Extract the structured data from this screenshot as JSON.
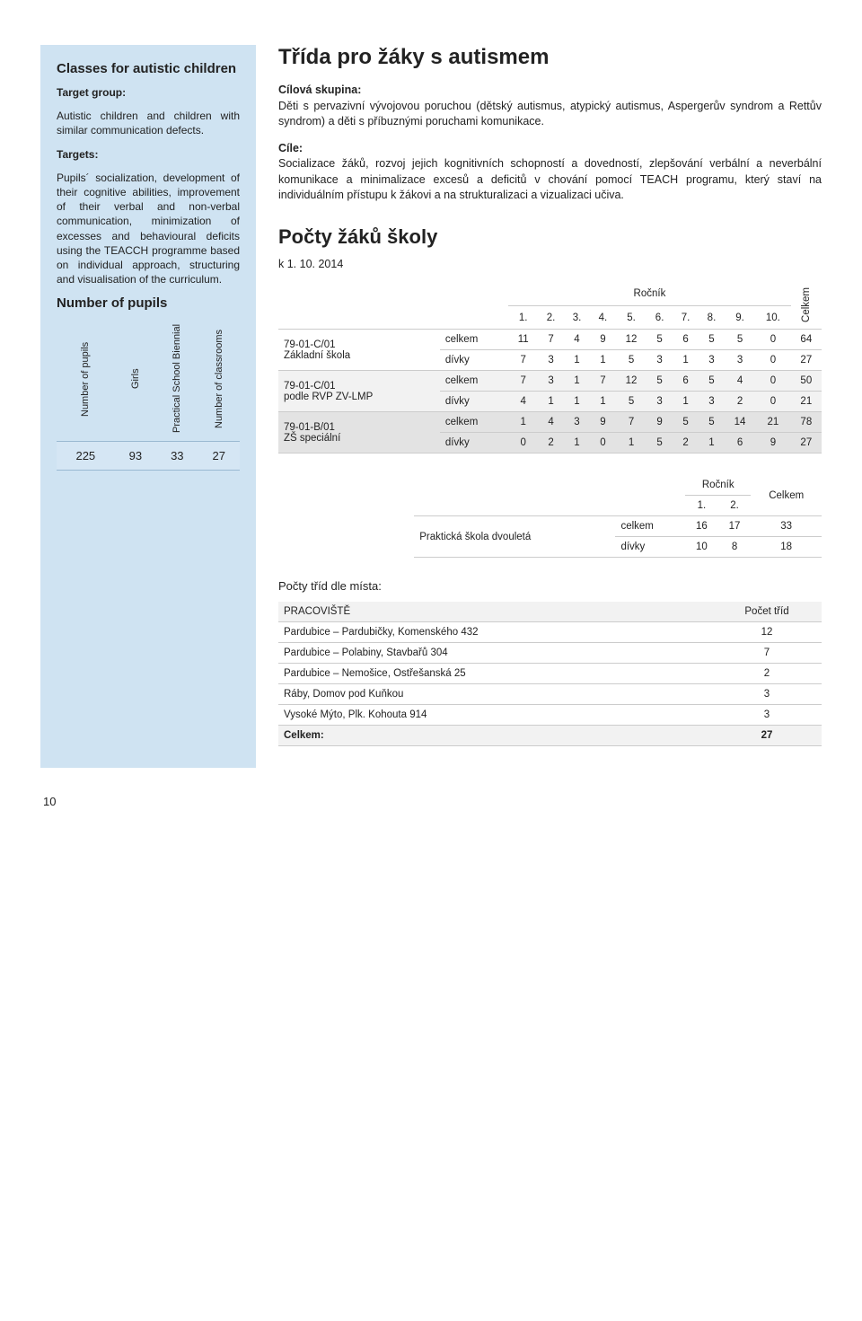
{
  "sidebar": {
    "heading": "Classes for autistic children",
    "target_group_label": "Target group:",
    "target_group_text": "Autistic children and children with similar communication defects.",
    "targets_label": "Targets:",
    "targets_text": "Pupils´ socialization, development of their cognitive abilities, improvement of their verbal and non-verbal communication, minimization of excesses and behavioural deficits using the TEACCH programme based on individual approach, structuring and visualisation of the curriculum.",
    "number_heading": "Number of pupils",
    "table": {
      "headers": [
        "Number of pupils",
        "Girls",
        "Practical School Biennial",
        "Number of classrooms"
      ],
      "values": [
        "225",
        "93",
        "33",
        "27"
      ]
    }
  },
  "main": {
    "title1": "Třída pro žáky s autismem",
    "cilova_label": "Cílová skupina:",
    "cilova_text": "Děti s pervazivní vývojovou poruchou (dětský autismus, atypický autismus, Aspergerův syndrom a Rettův syndrom) a děti s příbuznými poruchami komunikace.",
    "cile_label": "Cíle:",
    "cile_text": "Socializace žáků, rozvoj jejich kognitivních schopností a dovedností, zlepšování verbální a neverbální komunikace a minimalizace excesů a deficitů v chování pomocí TEACH programu, který staví na individuálním přístupu k žákovi a na strukturalizaci a vizualizaci učiva.",
    "title2": "Počty žáků školy",
    "date": "k 1. 10. 2014",
    "table1": {
      "rocnik_label": "Ročník",
      "celkem_label": "Celkem",
      "grades": [
        "1.",
        "2.",
        "3.",
        "4.",
        "5.",
        "6.",
        "7.",
        "8.",
        "9.",
        "10."
      ],
      "rows": [
        {
          "g1": "79-01-C/01",
          "g2": "Základní škola",
          "t": "celkem",
          "v": [
            "11",
            "7",
            "4",
            "9",
            "12",
            "5",
            "6",
            "5",
            "5",
            "0"
          ],
          "tot": "64"
        },
        {
          "g1": "",
          "g2": "",
          "t": "dívky",
          "v": [
            "7",
            "3",
            "1",
            "1",
            "5",
            "3",
            "1",
            "3",
            "3",
            "0"
          ],
          "tot": "27"
        },
        {
          "g1": "79-01-C/01",
          "g2": "podle RVP ZV-LMP",
          "t": "celkem",
          "v": [
            "7",
            "3",
            "1",
            "7",
            "12",
            "5",
            "6",
            "5",
            "4",
            "0"
          ],
          "tot": "50"
        },
        {
          "g1": "",
          "g2": "",
          "t": "dívky",
          "v": [
            "4",
            "1",
            "1",
            "1",
            "5",
            "3",
            "1",
            "3",
            "2",
            "0"
          ],
          "tot": "21"
        },
        {
          "g1": "79-01-B/01",
          "g2": "ZŠ speciální",
          "t": "celkem",
          "v": [
            "1",
            "4",
            "3",
            "9",
            "7",
            "9",
            "5",
            "5",
            "14",
            "21"
          ],
          "tot": "78"
        },
        {
          "g1": "",
          "g2": "",
          "t": "dívky",
          "v": [
            "0",
            "2",
            "1",
            "0",
            "1",
            "5",
            "2",
            "1",
            "6",
            "9"
          ],
          "tot": "27"
        }
      ]
    },
    "table2": {
      "rocnik_label": "Ročník",
      "celkem_label": "Celkem",
      "grades": [
        "1.",
        "2."
      ],
      "name": "Praktická škola dvouletá",
      "rows": [
        {
          "t": "celkem",
          "v": [
            "16",
            "17"
          ],
          "tot": "33"
        },
        {
          "t": "dívky",
          "v": [
            "10",
            "8"
          ],
          "tot": "18"
        }
      ]
    },
    "pocty_trid_label": "Počty tříd dle místa:",
    "table3": {
      "h1": "PRACOVIŠTĚ",
      "h2": "Počet tříd",
      "rows": [
        {
          "name": "Pardubice – Pardubičky, Komenského 432",
          "n": "12"
        },
        {
          "name": "Pardubice – Polabiny, Stavbařů 304",
          "n": "7"
        },
        {
          "name": "Pardubice – Nemošice, Ostřešanská 25",
          "n": "2"
        },
        {
          "name": "Ráby, Domov pod Kuňkou",
          "n": "3"
        },
        {
          "name": "Vysoké Mýto, Plk. Kohouta 914",
          "n": "3"
        }
      ],
      "total_label": "Celkem:",
      "total_val": "27"
    }
  },
  "page_number": "10"
}
